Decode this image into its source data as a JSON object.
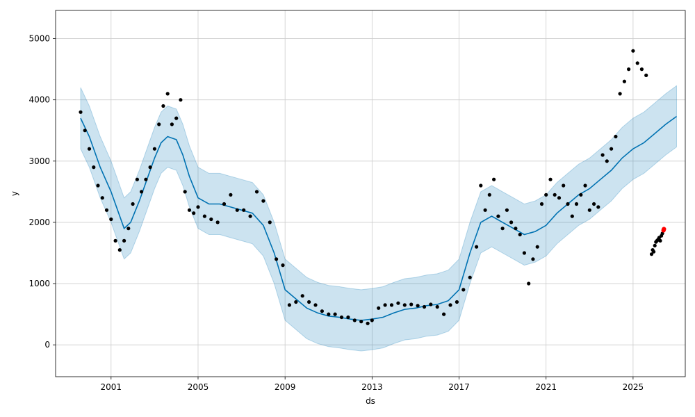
{
  "chart_data": {
    "type": "line",
    "xlabel": "ds",
    "ylabel": "y",
    "xlim": [
      1998.45,
      2027.4
    ],
    "ylim": [
      -520,
      5460
    ],
    "grid": true,
    "x_ticks": [
      2001,
      2005,
      2009,
      2013,
      2017,
      2021,
      2025
    ],
    "x_tick_labels": [
      "2001",
      "2005",
      "2009",
      "2013",
      "2017",
      "2021",
      "2025"
    ],
    "y_ticks": [
      0,
      1000,
      2000,
      3000,
      4000,
      5000
    ],
    "y_tick_labels": [
      "0",
      "1000",
      "2000",
      "3000",
      "4000",
      "5000"
    ],
    "colors": {
      "observed": "#000000",
      "forecast_line": "#0072B2",
      "uncertainty_band": "#0072B2",
      "highlight": "#ff0000",
      "grid": "#cccccc"
    },
    "series": [
      {
        "kind": "forecast",
        "x": [
          1999.6,
          2000.0,
          2000.5,
          2001.0,
          2001.3,
          2001.6,
          2001.9,
          2002.3,
          2002.7,
          2003.0,
          2003.3,
          2003.6,
          2004.0,
          2004.3,
          2004.6,
          2005.0,
          2005.5,
          2006.0,
          2006.5,
          2007.0,
          2007.5,
          2008.0,
          2008.5,
          2009.0,
          2009.5,
          2010.0,
          2010.5,
          2011.0,
          2011.5,
          2012.0,
          2012.5,
          2013.0,
          2013.5,
          2014.0,
          2014.5,
          2015.0,
          2015.5,
          2016.0,
          2016.5,
          2017.0,
          2017.5,
          2018.0,
          2018.5,
          2019.0,
          2019.5,
          2020.0,
          2020.5,
          2021.0,
          2021.5,
          2022.0,
          2022.5,
          2023.0,
          2023.5,
          2024.0,
          2024.5,
          2025.0,
          2025.5,
          2026.0,
          2026.5,
          2027.0
        ],
        "values": [
          3700,
          3400,
          2900,
          2500,
          2200,
          1900,
          2000,
          2350,
          2750,
          3050,
          3300,
          3400,
          3350,
          3100,
          2750,
          2400,
          2300,
          2300,
          2250,
          2200,
          2150,
          1950,
          1500,
          900,
          750,
          600,
          520,
          470,
          450,
          420,
          400,
          420,
          450,
          520,
          580,
          600,
          640,
          660,
          720,
          900,
          1500,
          2000,
          2100,
          2000,
          1900,
          1800,
          1850,
          1950,
          2150,
          2300,
          2450,
          2550,
          2700,
          2850,
          3050,
          3200,
          3300,
          3450,
          3600,
          3730
        ],
        "lower": [
          3200,
          2900,
          2400,
          2000,
          1700,
          1400,
          1500,
          1850,
          2250,
          2550,
          2800,
          2900,
          2850,
          2600,
          2250,
          1900,
          1800,
          1800,
          1750,
          1700,
          1650,
          1450,
          1000,
          400,
          250,
          100,
          20,
          -30,
          -50,
          -80,
          -100,
          -80,
          -50,
          20,
          80,
          100,
          140,
          160,
          220,
          400,
          1000,
          1500,
          1600,
          1500,
          1400,
          1300,
          1350,
          1450,
          1650,
          1800,
          1950,
          2050,
          2200,
          2350,
          2550,
          2700,
          2800,
          2950,
          3100,
          3230
        ],
        "upper": [
          4200,
          3900,
          3400,
          3000,
          2700,
          2400,
          2500,
          2850,
          3250,
          3550,
          3800,
          3900,
          3850,
          3600,
          3250,
          2900,
          2800,
          2800,
          2750,
          2700,
          2650,
          2450,
          2000,
          1400,
          1250,
          1100,
          1020,
          970,
          950,
          920,
          900,
          920,
          950,
          1020,
          1080,
          1100,
          1140,
          1160,
          1220,
          1400,
          2000,
          2500,
          2600,
          2500,
          2400,
          2300,
          2350,
          2450,
          2650,
          2800,
          2950,
          3050,
          3200,
          3350,
          3550,
          3700,
          3800,
          3950,
          4100,
          4230
        ]
      },
      {
        "kind": "observed",
        "x": [
          1999.6,
          1999.8,
          2000.0,
          2000.2,
          2000.4,
          2000.6,
          2000.8,
          2001.0,
          2001.2,
          2001.4,
          2001.6,
          2001.8,
          2002.0,
          2002.2,
          2002.4,
          2002.6,
          2002.8,
          2003.0,
          2003.2,
          2003.4,
          2003.6,
          2003.8,
          2004.0,
          2004.2,
          2004.4,
          2004.6,
          2004.8,
          2005.0,
          2005.3,
          2005.6,
          2005.9,
          2006.2,
          2006.5,
          2006.8,
          2007.1,
          2007.4,
          2007.7,
          2008.0,
          2008.3,
          2008.6,
          2008.9,
          2009.2,
          2009.5,
          2009.8,
          2010.1,
          2010.4,
          2010.7,
          2011.0,
          2011.3,
          2011.6,
          2011.9,
          2012.2,
          2012.5,
          2012.8,
          2013.0,
          2013.3,
          2013.6,
          2013.9,
          2014.2,
          2014.5,
          2014.8,
          2015.1,
          2015.4,
          2015.7,
          2016.0,
          2016.3,
          2016.6,
          2016.9,
          2017.2,
          2017.5,
          2017.8,
          2018.0,
          2018.2,
          2018.4,
          2018.6,
          2018.8,
          2019.0,
          2019.2,
          2019.4,
          2019.6,
          2019.8,
          2020.0,
          2020.2,
          2020.4,
          2020.6,
          2020.8,
          2021.0,
          2021.2,
          2021.4,
          2021.6,
          2021.8,
          2022.0,
          2022.2,
          2022.4,
          2022.6,
          2022.8,
          2023.0,
          2023.2,
          2023.4,
          2023.6,
          2023.8,
          2024.0,
          2024.2,
          2024.4,
          2024.6,
          2024.8,
          2025.0,
          2025.2,
          2025.4,
          2025.6
        ],
        "values": [
          3800,
          3500,
          3200,
          2900,
          2600,
          2400,
          2200,
          2050,
          1700,
          1550,
          1700,
          1900,
          2300,
          2700,
          2500,
          2700,
          2900,
          3200,
          3600,
          3900,
          4100,
          3600,
          3700,
          4000,
          2500,
          2200,
          2150,
          2250,
          2100,
          2050,
          2000,
          2300,
          2450,
          2200,
          2200,
          2100,
          2500,
          2350,
          2000,
          1400,
          1300,
          650,
          700,
          800,
          700,
          650,
          550,
          500,
          500,
          450,
          450,
          400,
          380,
          350,
          400,
          600,
          650,
          650,
          680,
          650,
          660,
          640,
          620,
          660,
          620,
          500,
          650,
          700,
          900,
          1100,
          1600,
          2600,
          2200,
          2450,
          2700,
          2100,
          1900,
          2200,
          2000,
          1900,
          1800,
          1500,
          1000,
          1400,
          1600,
          2300,
          2450,
          2700,
          2450,
          2400,
          2600,
          2300,
          2100,
          2300,
          2450,
          2600,
          2200,
          2300,
          2250,
          3100,
          3000,
          3200,
          3400,
          4100,
          4300,
          4500,
          4800,
          4600,
          4500,
          4400
        ]
      },
      {
        "kind": "observed-recent",
        "x": [
          2025.85,
          2025.9,
          2025.95,
          2026.0,
          2026.05,
          2026.1,
          2026.15,
          2026.2,
          2026.25,
          2026.3,
          2026.35
        ],
        "values": [
          1480,
          1550,
          1520,
          1620,
          1680,
          1700,
          1720,
          1750,
          1700,
          1780,
          1820
        ]
      },
      {
        "kind": "highlight",
        "x": [
          2026.4,
          2026.42
        ],
        "values": [
          1870,
          1890
        ]
      }
    ]
  }
}
